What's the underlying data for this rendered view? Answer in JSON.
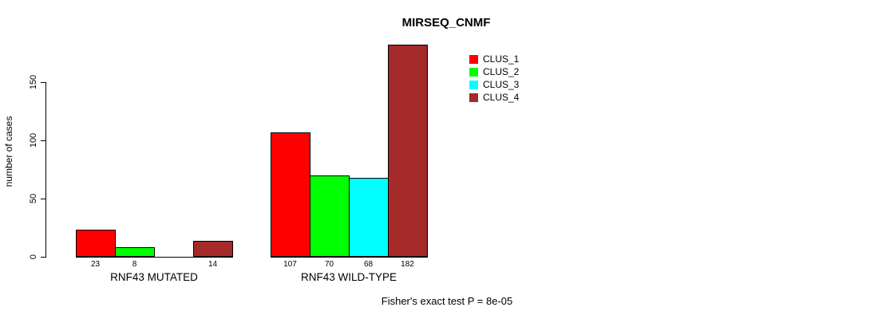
{
  "page": {
    "background_color": "#ffffff"
  },
  "chart_data": {
    "type": "bar",
    "title": "MIRSEQ_CNMF",
    "ylabel": "number of cases",
    "xlabel": "",
    "categories": [
      "RNF43 MUTATED",
      "RNF43 WILD-TYPE"
    ],
    "series": [
      {
        "name": "CLUS_1",
        "color": "#ff0000",
        "values": [
          23,
          107
        ]
      },
      {
        "name": "CLUS_2",
        "color": "#00ff00",
        "values": [
          8,
          70
        ]
      },
      {
        "name": "CLUS_3",
        "color": "#00ffff",
        "values": [
          0,
          68
        ]
      },
      {
        "name": "CLUS_4",
        "color": "#a52a2a",
        "values": [
          14,
          182
        ]
      }
    ],
    "yticks": [
      0,
      50,
      100,
      150
    ],
    "ylim": [
      0,
      150
    ],
    "grid": false,
    "bar_outline_color": "#000000",
    "zero_value_labels_hidden": true,
    "legend_position": "top-right",
    "annotation": "Fisher's exact test P = 8e-05"
  }
}
